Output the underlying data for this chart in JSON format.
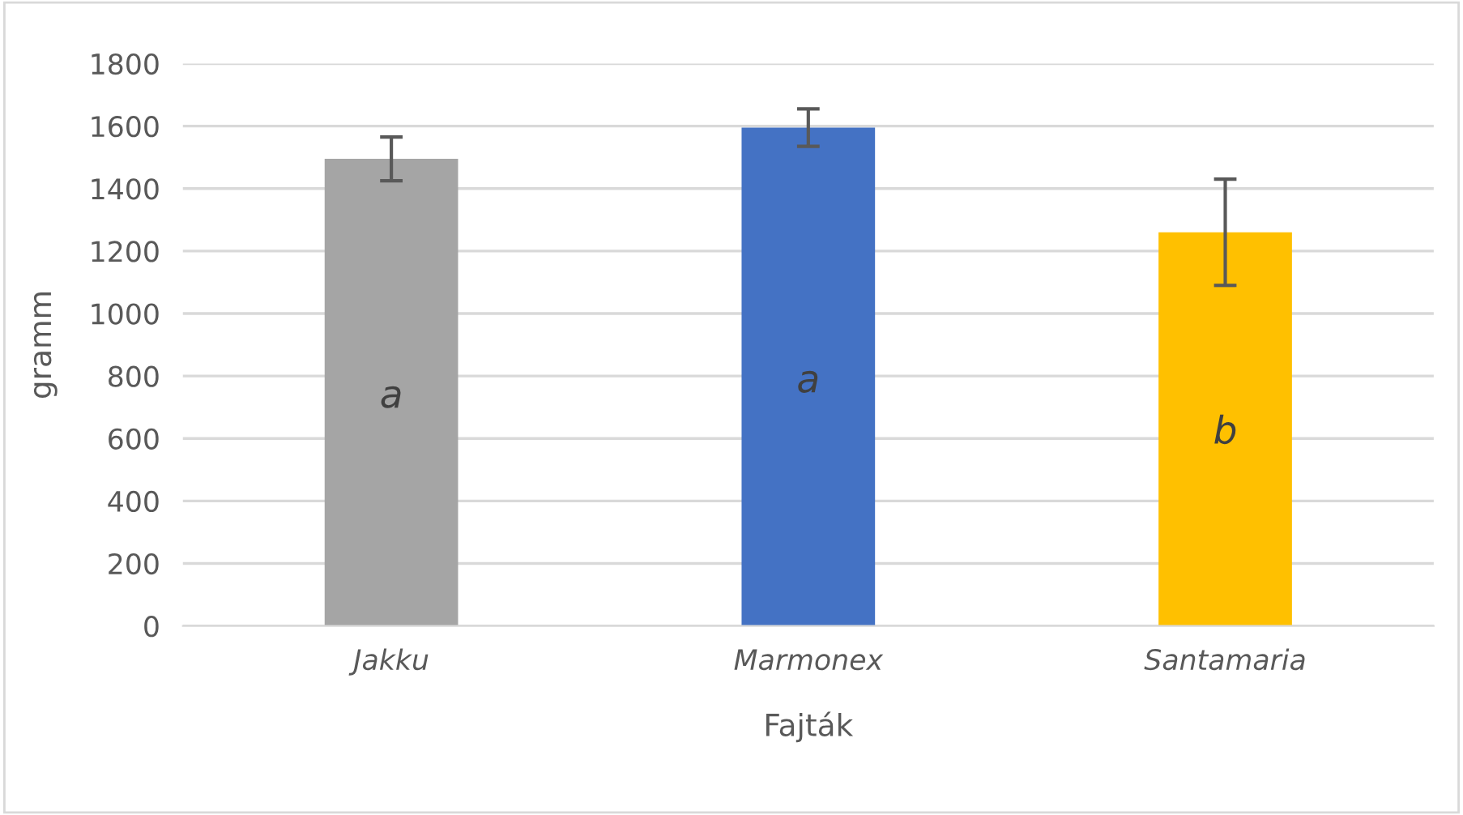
{
  "chart_data": {
    "type": "bar",
    "xlabel": "Fajták",
    "ylabel": "gramm",
    "categories": [
      "Jakku",
      "Marmonex",
      "Santamaria"
    ],
    "values": [
      1495,
      1595,
      1260
    ],
    "colors": [
      "#a5a5a5",
      "#4472c4",
      "#ffc000"
    ],
    "errors": [
      70,
      60,
      170
    ],
    "ylim": [
      0,
      1800
    ],
    "yticks": [
      0,
      200,
      400,
      600,
      800,
      1000,
      1200,
      1400,
      1600,
      1800
    ],
    "grid": "y",
    "legend": false,
    "annotations": [
      "a",
      "a",
      "b"
    ]
  }
}
